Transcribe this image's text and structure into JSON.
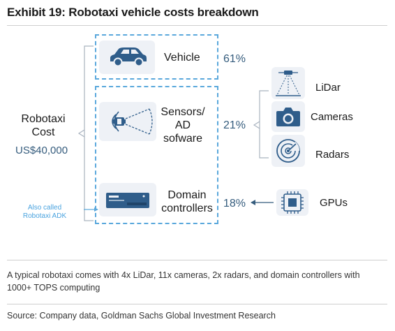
{
  "title": "Exhibit 19: Robotaxi vehicle costs breakdown",
  "cost": {
    "label_line1": "Robotaxi",
    "label_line2": "Cost",
    "value": "US$40,000"
  },
  "note": {
    "line1": "Also called",
    "line2": "Robotaxi ADK"
  },
  "components": [
    {
      "label": "Vehicle",
      "percent": "61%",
      "icon": "car-icon"
    },
    {
      "label_line1": "Sensors/",
      "label_line2": "AD",
      "label_line3": "sofware",
      "percent": "21%",
      "icon": "sensor-icon"
    },
    {
      "label_line1": "Domain",
      "label_line2": "controllers",
      "percent": "18%",
      "icon": "controller-icon"
    }
  ],
  "sensors": [
    {
      "label": "LiDar",
      "icon": "lidar-icon"
    },
    {
      "label": "Cameras",
      "icon": "camera-icon"
    },
    {
      "label": "Radars",
      "icon": "radar-icon"
    }
  ],
  "gpu": {
    "label": "GPUs",
    "icon": "chip-icon"
  },
  "footnote": {
    "line1": "A typical robotaxi comes with 4x LiDar, 11x cameras, 2x radars, and domain controllers with",
    "line2": "1000+ TOPS computing"
  },
  "source": "Source: Company data, Goldman Sachs Global Investment Research",
  "colors": {
    "icon_fill": "#2f5d8a",
    "dashed_border": "#5aa8dc",
    "percent_text": "#355c7d",
    "note_text": "#4aa3df",
    "icon_box_bg": "#eef1f6"
  }
}
